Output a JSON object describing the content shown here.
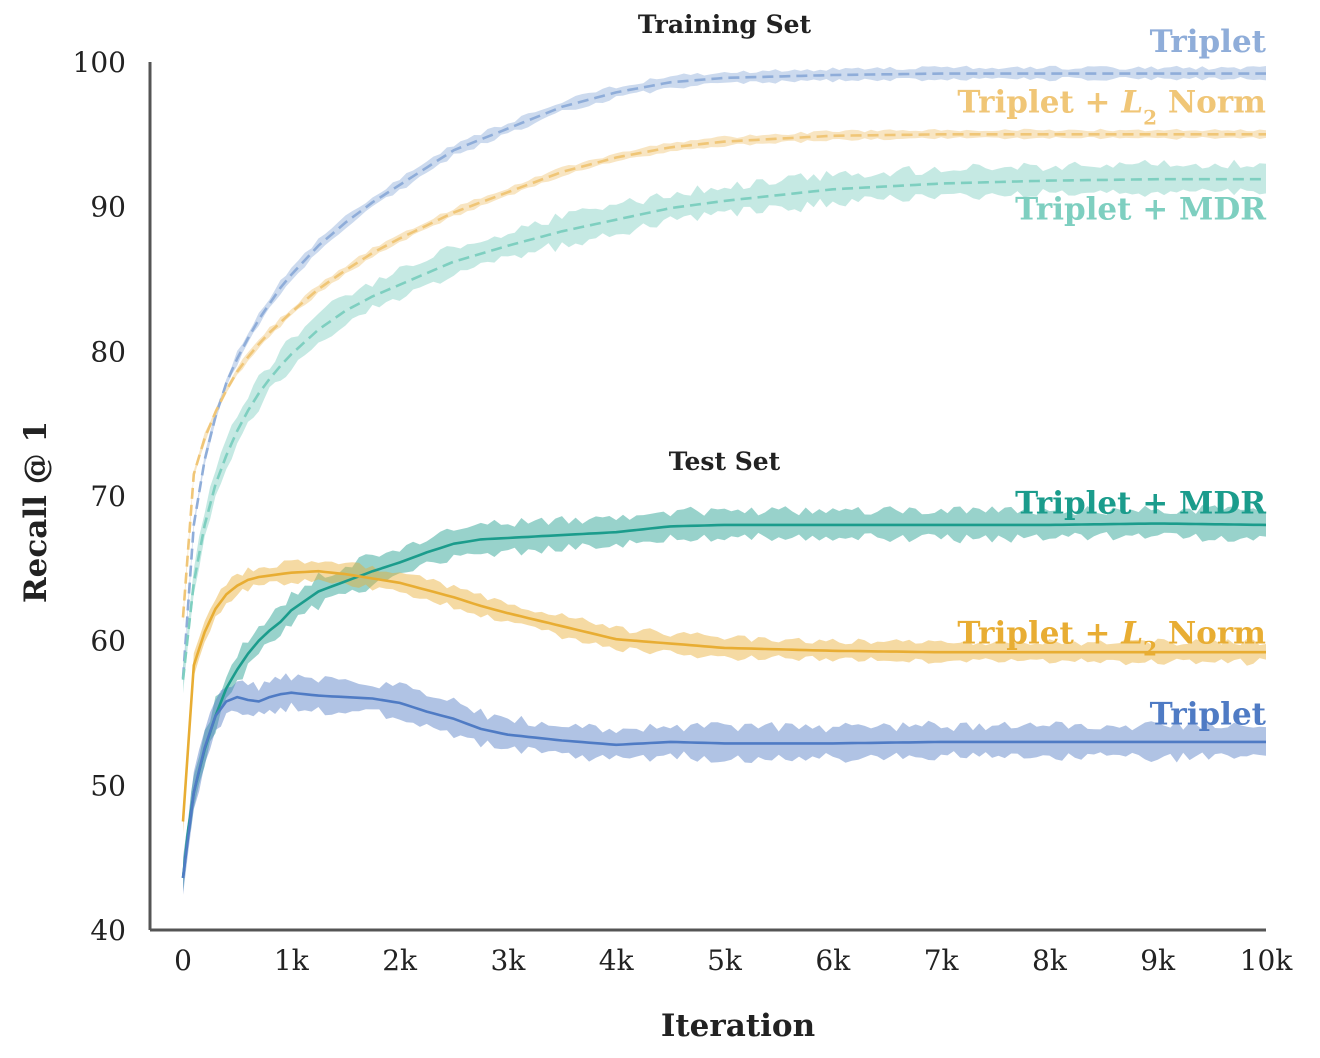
{
  "chart_data": {
    "type": "line",
    "xlabel": "Iteration",
    "ylabel": "Recall @ 1",
    "xlim": [
      0,
      10000
    ],
    "ylim": [
      40,
      100
    ],
    "x_ticks": [
      {
        "value": 0,
        "label": "0"
      },
      {
        "value": 1000,
        "label": "1k"
      },
      {
        "value": 2000,
        "label": "2k"
      },
      {
        "value": 3000,
        "label": "3k"
      },
      {
        "value": 4000,
        "label": "4k"
      },
      {
        "value": 5000,
        "label": "5k"
      },
      {
        "value": 6000,
        "label": "6k"
      },
      {
        "value": 7000,
        "label": "7k"
      },
      {
        "value": 8000,
        "label": "8k"
      },
      {
        "value": 9000,
        "label": "9k"
      },
      {
        "value": 10000,
        "label": "10k"
      }
    ],
    "y_ticks": [
      {
        "value": 40,
        "label": "40"
      },
      {
        "value": 50,
        "label": "50"
      },
      {
        "value": 60,
        "label": "60"
      },
      {
        "value": 70,
        "label": "70"
      },
      {
        "value": 80,
        "label": "80"
      },
      {
        "value": 90,
        "label": "90"
      },
      {
        "value": 100,
        "label": "100"
      }
    ],
    "groups": [
      {
        "title": "Training Set",
        "line_style": "dashed",
        "anchor_x": 5000,
        "anchor_y": 102
      },
      {
        "title": "Test Set",
        "line_style": "solid",
        "anchor_x": 5000,
        "anchor_y": 71.8
      }
    ],
    "series": [
      {
        "id": "train-triplet",
        "group": "Training Set",
        "name": "Triplet",
        "label_main": "Triplet",
        "label_norm": "",
        "label_suffix": "",
        "color": "#8fadd9",
        "line_style": "dashed",
        "band": 0.4,
        "label_y": 100.7,
        "x": [
          0,
          100,
          200,
          300,
          400,
          500,
          600,
          700,
          800,
          900,
          1000,
          1250,
          1500,
          1750,
          2000,
          2500,
          3000,
          3500,
          4000,
          4500,
          5000,
          6000,
          7000,
          8000,
          9000,
          10000
        ],
        "values": [
          57.4,
          68,
          72.5,
          75.5,
          77.8,
          79.5,
          80.9,
          82.2,
          83.3,
          84.4,
          85.3,
          87.3,
          88.9,
          90.3,
          91.5,
          93.9,
          95.4,
          96.9,
          97.9,
          98.6,
          98.9,
          99.1,
          99.2,
          99.2,
          99.2,
          99.2
        ]
      },
      {
        "id": "train-l2",
        "group": "Training Set",
        "name": "Triplet + L2 Norm",
        "label_main": "Triplet + ",
        "label_norm": "L",
        "label_suffix": " Norm",
        "color": "#f0c677",
        "line_style": "dashed",
        "band": 0.3,
        "label_y": 96.5,
        "x": [
          0,
          100,
          200,
          300,
          400,
          500,
          600,
          700,
          800,
          900,
          1000,
          1250,
          1500,
          1750,
          2000,
          2500,
          3000,
          3500,
          4000,
          4500,
          5000,
          6000,
          7000,
          8000,
          9000,
          10000
        ],
        "values": [
          61.6,
          71.5,
          74,
          75.8,
          77.3,
          78.6,
          79.6,
          80.5,
          81.3,
          82,
          82.7,
          84.3,
          85.6,
          86.8,
          87.8,
          89.6,
          91,
          92.4,
          93.4,
          94.1,
          94.5,
          94.9,
          95,
          95,
          95,
          95
        ],
        "values_raw_note": ""
      },
      {
        "id": "train-mdr",
        "group": "Training Set",
        "name": "Triplet + MDR",
        "label_main": "Triplet + MDR",
        "label_norm": "",
        "label_suffix": "",
        "color": "#7ecfc0",
        "line_style": "dashed",
        "band": 1.0,
        "label_y": 89.1,
        "x": [
          0,
          100,
          200,
          300,
          400,
          500,
          600,
          700,
          800,
          900,
          1000,
          1250,
          1500,
          1750,
          2000,
          2500,
          3000,
          3500,
          4000,
          4500,
          5000,
          6000,
          7000,
          8000,
          9000,
          10000
        ],
        "values": [
          57.3,
          64,
          68,
          70.8,
          72.8,
          74.5,
          75.9,
          77.1,
          78.1,
          79,
          79.8,
          81.5,
          82.8,
          83.8,
          84.6,
          86.2,
          87.3,
          88.3,
          89.1,
          89.9,
          90.4,
          91.2,
          91.6,
          91.8,
          91.9,
          91.9
        ]
      },
      {
        "id": "test-mdr",
        "group": "Test Set",
        "name": "Triplet + MDR",
        "label_main": "Triplet + MDR",
        "label_norm": "",
        "label_suffix": "",
        "color": "#1b9c8c",
        "line_style": "solid",
        "band": 1.0,
        "label_y": 68.8,
        "x": [
          0,
          50,
          100,
          200,
          300,
          400,
          500,
          600,
          700,
          800,
          900,
          1000,
          1250,
          1500,
          1750,
          2000,
          2250,
          2500,
          2750,
          3000,
          3500,
          4000,
          4250,
          4500,
          5000,
          5500,
          6000,
          7000,
          8000,
          9000,
          10000
        ],
        "values": [
          43.6,
          47,
          49.5,
          52.5,
          54.8,
          56.7,
          58,
          59.1,
          60,
          60.7,
          61.3,
          62.1,
          63.4,
          64.1,
          64.8,
          65.4,
          66.1,
          66.7,
          67,
          67.1,
          67.3,
          67.5,
          67.7,
          67.9,
          68,
          68,
          68,
          68,
          68,
          68.1,
          68
        ],
        "values_raw_note": ""
      },
      {
        "id": "test-l2",
        "group": "Test Set",
        "name": "Triplet + L2 Norm",
        "label_main": "Triplet + ",
        "label_norm": "L",
        "label_suffix": " Norm",
        "color": "#e8ad33",
        "line_style": "solid",
        "band": 0.7,
        "label_y": 59.8,
        "x": [
          0,
          100,
          200,
          300,
          400,
          500,
          600,
          700,
          800,
          1000,
          1250,
          1500,
          1750,
          2000,
          2250,
          2500,
          2750,
          3000,
          3500,
          4000,
          4500,
          5000,
          5500,
          6000,
          7000,
          8000,
          9000,
          10000
        ],
        "values": [
          47.5,
          58.3,
          60.6,
          62.2,
          63.2,
          63.8,
          64.2,
          64.4,
          64.5,
          64.7,
          64.8,
          64.6,
          64.3,
          64,
          63.5,
          63,
          62.4,
          61.9,
          61,
          60.1,
          59.8,
          59.5,
          59.4,
          59.3,
          59.2,
          59.2,
          59.2,
          59.2
        ]
      },
      {
        "id": "test-triplet",
        "group": "Test Set",
        "name": "Triplet",
        "label_main": "Triplet",
        "label_norm": "",
        "label_suffix": "",
        "color": "#4f7bc4",
        "line_style": "solid",
        "band": 1.1,
        "label_y": 54.2,
        "x": [
          0,
          100,
          200,
          300,
          400,
          500,
          600,
          700,
          800,
          900,
          1000,
          1250,
          1500,
          1750,
          2000,
          2250,
          2500,
          2750,
          3000,
          3500,
          4000,
          4500,
          5000,
          5500,
          6000,
          7000,
          8000,
          9000,
          10000
        ],
        "values": [
          43.6,
          49.5,
          52.6,
          54.8,
          55.8,
          56.1,
          55.9,
          55.8,
          56.1,
          56.3,
          56.4,
          56.2,
          56.1,
          56,
          55.7,
          55.1,
          54.6,
          53.9,
          53.5,
          53.1,
          52.8,
          53,
          52.9,
          52.9,
          52.9,
          53,
          53,
          53,
          53
        ]
      }
    ]
  }
}
